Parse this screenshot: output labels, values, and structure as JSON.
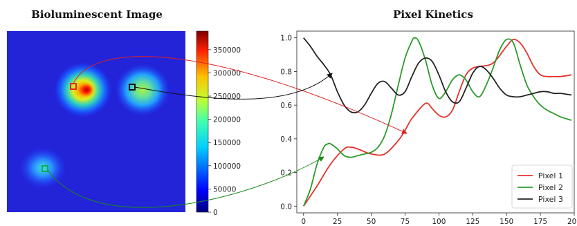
{
  "left_panel": {
    "title": "Bioluminescent Image",
    "colorbar_ticks": [
      "350000",
      "300000",
      "250000",
      "200000",
      "150000",
      "100000",
      "50000",
      "0"
    ],
    "colorbar_range": [
      0,
      390000
    ],
    "markers": [
      {
        "pixel": "Pixel 1",
        "color": "#ee2222"
      },
      {
        "pixel": "Pixel 3",
        "color": "#111111"
      },
      {
        "pixel": "Pixel 2",
        "color": "#11aa55"
      }
    ]
  },
  "chart_data": {
    "type": "line",
    "title": "Pixel Kinetics",
    "xlabel": "",
    "ylabel": "",
    "xlim": [
      -5,
      200
    ],
    "ylim": [
      -0.04,
      1.04
    ],
    "x_ticks": [
      "0",
      "25",
      "50",
      "75",
      "100",
      "125",
      "150",
      "175",
      "200"
    ],
    "y_ticks": [
      "0.0",
      "0.2",
      "0.4",
      "0.6",
      "0.8",
      "1.0"
    ],
    "legend_position": "lower-right",
    "grid": false,
    "series": [
      {
        "name": "Pixel 1",
        "color": "#e8302a",
        "x": [
          0,
          10,
          20,
          30,
          35,
          40,
          50,
          60,
          70,
          75,
          80,
          90,
          95,
          100,
          105,
          110,
          115,
          120,
          125,
          130,
          140,
          150,
          155,
          160,
          165,
          170,
          175,
          180,
          185,
          190,
          198
        ],
        "y": [
          0.0,
          0.12,
          0.25,
          0.34,
          0.35,
          0.34,
          0.31,
          0.31,
          0.39,
          0.45,
          0.52,
          0.61,
          0.58,
          0.54,
          0.53,
          0.57,
          0.68,
          0.78,
          0.82,
          0.83,
          0.85,
          0.95,
          0.99,
          0.97,
          0.91,
          0.83,
          0.78,
          0.77,
          0.77,
          0.77,
          0.78
        ]
      },
      {
        "name": "Pixel 2",
        "color": "#2a9a2a",
        "x": [
          0,
          5,
          10,
          15,
          18,
          20,
          25,
          30,
          35,
          40,
          45,
          50,
          55,
          60,
          65,
          70,
          75,
          80,
          82,
          85,
          90,
          95,
          100,
          105,
          110,
          115,
          120,
          125,
          130,
          135,
          140,
          145,
          150,
          155,
          160,
          165,
          170,
          175,
          180,
          185,
          190,
          198
        ],
        "y": [
          0.0,
          0.1,
          0.25,
          0.35,
          0.37,
          0.37,
          0.34,
          0.3,
          0.29,
          0.3,
          0.31,
          0.32,
          0.35,
          0.42,
          0.55,
          0.72,
          0.88,
          0.98,
          1.0,
          0.98,
          0.87,
          0.72,
          0.64,
          0.68,
          0.75,
          0.78,
          0.75,
          0.68,
          0.65,
          0.72,
          0.82,
          0.93,
          0.99,
          0.97,
          0.84,
          0.72,
          0.65,
          0.6,
          0.57,
          0.55,
          0.53,
          0.51
        ]
      },
      {
        "name": "Pixel 3",
        "color": "#222222",
        "x": [
          0,
          5,
          10,
          15,
          20,
          25,
          30,
          35,
          40,
          45,
          50,
          55,
          60,
          65,
          70,
          75,
          80,
          85,
          90,
          95,
          100,
          105,
          110,
          115,
          120,
          125,
          130,
          135,
          140,
          145,
          150,
          155,
          160,
          165,
          170,
          175,
          180,
          185,
          190,
          198
        ],
        "y": [
          1.0,
          0.95,
          0.89,
          0.84,
          0.78,
          0.68,
          0.6,
          0.56,
          0.56,
          0.6,
          0.67,
          0.73,
          0.74,
          0.7,
          0.66,
          0.68,
          0.77,
          0.85,
          0.88,
          0.86,
          0.78,
          0.68,
          0.62,
          0.62,
          0.7,
          0.79,
          0.83,
          0.81,
          0.76,
          0.7,
          0.66,
          0.65,
          0.65,
          0.66,
          0.67,
          0.68,
          0.68,
          0.67,
          0.67,
          0.66
        ]
      }
    ]
  }
}
